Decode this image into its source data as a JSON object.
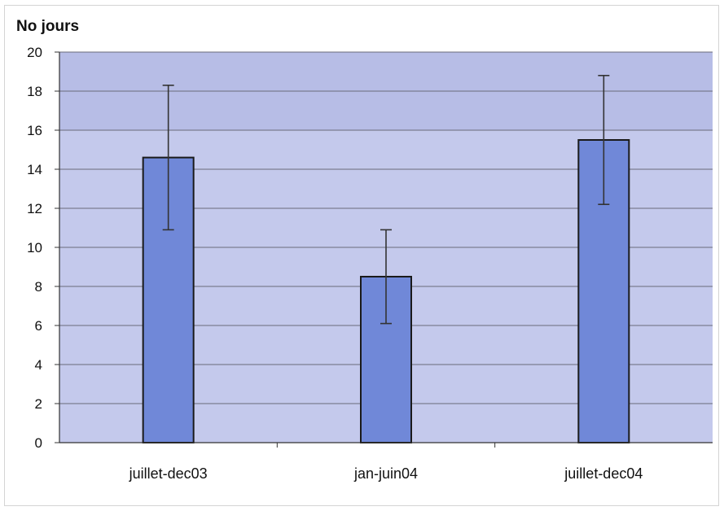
{
  "chart_data": {
    "type": "bar",
    "title": "",
    "xlabel": "",
    "ylabel": "No jours",
    "categories": [
      "juillet-dec03",
      "jan-juin04",
      "juillet-dec04"
    ],
    "values": [
      14.6,
      8.5,
      15.5
    ],
    "error_bars": [
      {
        "low": 10.9,
        "high": 18.3
      },
      {
        "low": 6.1,
        "high": 10.9
      },
      {
        "low": 12.2,
        "high": 18.8
      }
    ],
    "ylim": [
      0,
      20
    ],
    "yticks": [
      0,
      2,
      4,
      6,
      8,
      10,
      12,
      14,
      16,
      18,
      20
    ],
    "grid": true,
    "legend": "none",
    "colors": {
      "bar_fill": "#7088d8",
      "bar_stroke": "#1a1a1a",
      "plot_background": "#c4c9ec",
      "plot_band": "#b7bde6",
      "gridline": "#6a6a7a",
      "error_bar": "#333333"
    }
  }
}
